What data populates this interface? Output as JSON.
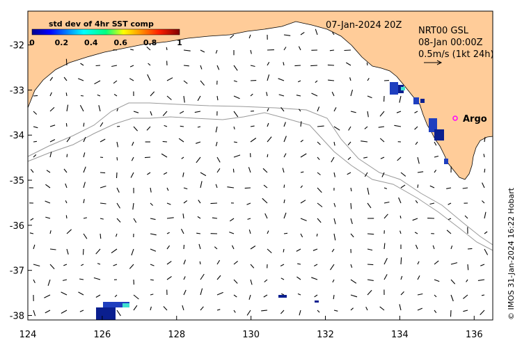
{
  "map": {
    "date_label": "07-Jan-2024 20Z",
    "product": {
      "line1": "NRT00 GSL",
      "line2": "08-Jan 00:00Z",
      "line3": "0.5m/s (1kt 24h)"
    },
    "colorbar": {
      "title": "std dev of 4hr SST comp",
      "ticks": [
        "0",
        "0.2",
        "0.4",
        "0.6",
        "0.8",
        "1"
      ]
    },
    "marker": {
      "label": "Argo",
      "color": "#ff00ff"
    },
    "credit": "© IMOS 31-Jan-2024 16:22 Hobart",
    "axes": {
      "x_ticks": [
        "124",
        "126",
        "128",
        "130",
        "132",
        "134",
        "136"
      ],
      "y_ticks": [
        "-32",
        "-33",
        "-34",
        "-35",
        "-36",
        "-37",
        "-38"
      ],
      "x_range": [
        124,
        136.5
      ],
      "y_range": [
        -38.1,
        -31.25
      ]
    },
    "colors": {
      "land": "#ffcc99",
      "ocean": "#ffffff",
      "shelf_contour": "#999999",
      "arrows": "#000000"
    }
  }
}
